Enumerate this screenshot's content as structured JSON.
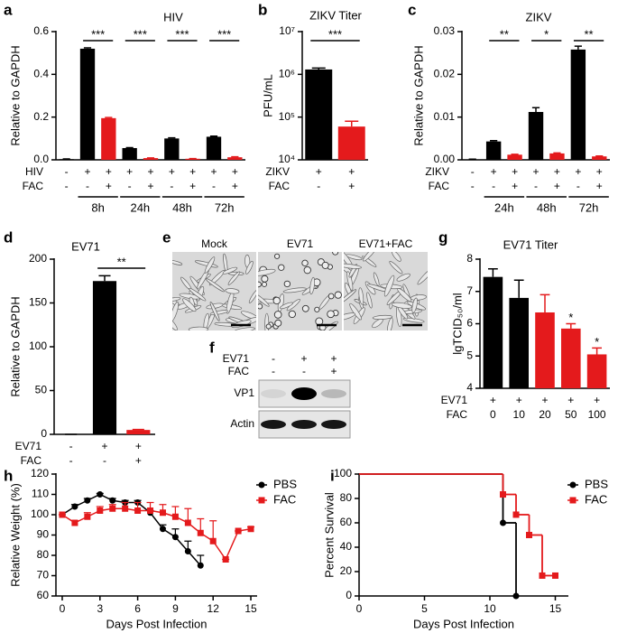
{
  "chart_data": [
    {
      "panel": "a",
      "type": "bar",
      "title": "HIV",
      "y_label": "Relative to GAPDH",
      "ylim": [
        0,
        0.6
      ],
      "yticks": [
        {
          "value": 0,
          "label": "0.0"
        },
        0.2,
        0.4,
        0.6
      ],
      "values": [
        0.003,
        0.52,
        0.195,
        0.055,
        0.008,
        0.1,
        0.005,
        0.108,
        0.012
      ],
      "errors": [
        0.001,
        0.004,
        0.003,
        0.002,
        0.001,
        0.003,
        0.001,
        0.003,
        0.002
      ],
      "colors": [
        "#000000",
        "#000000",
        "#e41a1c",
        "#000000",
        "#e41a1c",
        "#000000",
        "#e41a1c",
        "#000000",
        "#e41a1c"
      ],
      "conditions": [
        {
          "name": "HIV",
          "marks": [
            "-",
            "+",
            "+",
            "+",
            "+",
            "+",
            "+",
            "+",
            "+"
          ]
        },
        {
          "name": "FAC",
          "marks": [
            "-",
            "-",
            "+",
            "-",
            "+",
            "-",
            "+",
            "-",
            "+"
          ]
        }
      ],
      "groups": [
        null,
        "8h",
        "8h",
        "24h",
        "24h",
        "48h",
        "48h",
        "72h",
        "72h"
      ],
      "significance": [
        null,
        "***",
        null,
        "***",
        null,
        "***",
        null,
        "***",
        null
      ]
    },
    {
      "panel": "b",
      "type": "bar",
      "title": "ZIKV Titer",
      "y_label": "PFU/mL",
      "log_y": true,
      "ylim": [
        10000,
        10000000
      ],
      "yticks": [
        {
          "value": 10000,
          "label": "10⁴"
        },
        {
          "value": 100000,
          "label": "10⁵"
        },
        {
          "value": 1000000,
          "label": "10⁶"
        },
        {
          "value": 10000000,
          "label": "10⁷"
        }
      ],
      "values": [
        1300000,
        60000
      ],
      "errors": [
        100000,
        20000
      ],
      "colors": [
        "#000000",
        "#e41a1c"
      ],
      "conditions": [
        {
          "name": "ZIKV",
          "marks": [
            "+",
            "+"
          ]
        },
        {
          "name": "FAC",
          "marks": [
            "-",
            "+"
          ]
        }
      ],
      "significance": [
        "***",
        null
      ]
    },
    {
      "panel": "c",
      "type": "bar",
      "title": "ZIKV",
      "y_label": "Relative to GAPDH",
      "ylim": [
        0,
        0.03
      ],
      "yticks": [
        {
          "value": 0,
          "label": "0.00"
        },
        0.01,
        0.02,
        0.03
      ],
      "values": [
        0.0001,
        0.0043,
        0.0012,
        0.0112,
        0.0015,
        0.0258,
        0.0008
      ],
      "errors": [
        5e-05,
        0.0002,
        0.0001,
        0.001,
        0.0001,
        0.0008,
        0.0001
      ],
      "colors": [
        "#000000",
        "#000000",
        "#e41a1c",
        "#000000",
        "#e41a1c",
        "#000000",
        "#e41a1c"
      ],
      "conditions": [
        {
          "name": "ZIKV",
          "marks": [
            "-",
            "+",
            "+",
            "+",
            "+",
            "+",
            "+"
          ]
        },
        {
          "name": "FAC",
          "marks": [
            "-",
            "-",
            "+",
            "-",
            "+",
            "-",
            "+"
          ]
        }
      ],
      "groups": [
        null,
        "24h",
        "24h",
        "48h",
        "48h",
        "72h",
        "72h"
      ],
      "significance": [
        null,
        "**",
        null,
        "*",
        null,
        "**",
        null
      ]
    },
    {
      "panel": "d",
      "type": "bar",
      "title": "EV71",
      "y_label": "Relative to GAPDH",
      "ylim": [
        0,
        200
      ],
      "yticks": [
        0,
        50,
        100,
        150,
        200
      ],
      "values": [
        0,
        175,
        5
      ],
      "errors": [
        0,
        6,
        0.5
      ],
      "colors": [
        "#000000",
        "#000000",
        "#e41a1c"
      ],
      "conditions": [
        {
          "name": "EV71",
          "marks": [
            "-",
            "+",
            "+"
          ]
        },
        {
          "name": "FAC",
          "marks": [
            "-",
            "-",
            "+"
          ]
        }
      ],
      "significance": [
        null,
        "**",
        null
      ]
    },
    {
      "panel": "g",
      "type": "bar",
      "title": "EV71 Titer",
      "y_label": "lgTCID₅₀/ml",
      "ylim": [
        4,
        8
      ],
      "yticks": [
        4,
        5,
        6,
        7,
        8
      ],
      "values": [
        7.45,
        6.8,
        6.35,
        5.85,
        5.05
      ],
      "errors": [
        0.25,
        0.55,
        0.55,
        0.15,
        0.2
      ],
      "colors": [
        "#000000",
        "#000000",
        "#e41a1c",
        "#e41a1c",
        "#e41a1c"
      ],
      "conditions": [
        {
          "name": "EV71",
          "marks": [
            "+",
            "+",
            "+",
            "+",
            "+"
          ]
        },
        {
          "name": "FAC",
          "marks": [
            "0",
            "10",
            "20",
            "50",
            "100"
          ]
        }
      ],
      "annotations": [
        null,
        null,
        null,
        "*",
        "*"
      ]
    },
    {
      "panel": "h",
      "type": "line",
      "y_label": "Relative Weight (%)",
      "x_label": "Days Post Infection",
      "xlim": [
        -0.5,
        15.5
      ],
      "xticks": [
        0,
        3,
        6,
        9,
        12,
        15
      ],
      "ylim": [
        60,
        120
      ],
      "yticks": [
        60,
        70,
        80,
        90,
        100,
        110,
        120
      ],
      "legend": "upper right",
      "series": [
        {
          "name": "PBS",
          "color": "#000000",
          "marker": "circle",
          "x": [
            0,
            1,
            2,
            3,
            4,
            5,
            6,
            7,
            8,
            9,
            10,
            11
          ],
          "values": [
            100,
            104,
            107,
            110,
            107,
            106,
            106,
            101,
            93,
            89,
            82,
            75
          ],
          "errors": [
            0,
            1,
            1,
            0.5,
            1,
            1,
            1,
            1,
            2,
            4,
            5,
            5
          ]
        },
        {
          "name": "FAC",
          "color": "#e41a1c",
          "marker": "square",
          "x": [
            0,
            1,
            2,
            3,
            4,
            5,
            6,
            7,
            8,
            9,
            10,
            11,
            12,
            13,
            14,
            15
          ],
          "values": [
            100,
            96,
            99,
            102,
            103,
            103,
            102,
            102,
            101,
            99,
            96,
            91,
            87,
            78,
            92,
            93
          ],
          "errors": [
            0,
            1,
            2,
            2,
            2,
            3,
            4,
            4,
            4,
            5,
            7,
            7,
            10,
            0,
            0,
            1
          ]
        }
      ]
    },
    {
      "panel": "i",
      "type": "step",
      "y_label": "Percent Survival",
      "x_label": "Days Post Infection",
      "xlim": [
        0,
        16
      ],
      "xticks": [
        0,
        5,
        10,
        15
      ],
      "ylim": [
        0,
        100
      ],
      "yticks": [
        0,
        20,
        40,
        60,
        80,
        100
      ],
      "legend": "upper right",
      "series": [
        {
          "name": "PBS",
          "color": "#000000",
          "marker": "circle",
          "x": [
            0,
            11,
            12
          ],
          "values": [
            100,
            60,
            0
          ]
        },
        {
          "name": "FAC",
          "color": "#e41a1c",
          "marker": "square",
          "x": [
            0,
            11,
            12,
            13,
            14,
            15
          ],
          "values": [
            100,
            83.3,
            66.7,
            50,
            16.7,
            16.7
          ]
        }
      ]
    }
  ],
  "micrographs": {
    "panel": "e",
    "labels": [
      "Mock",
      "EV71",
      "EV71+FAC"
    ]
  },
  "blot": {
    "panel": "f",
    "conditions": [
      {
        "name": "EV71",
        "marks": [
          "-",
          "+",
          "+"
        ]
      },
      {
        "name": "FAC",
        "marks": [
          "-",
          "-",
          "+"
        ]
      }
    ],
    "rows": [
      "VP1",
      "Actin"
    ]
  }
}
